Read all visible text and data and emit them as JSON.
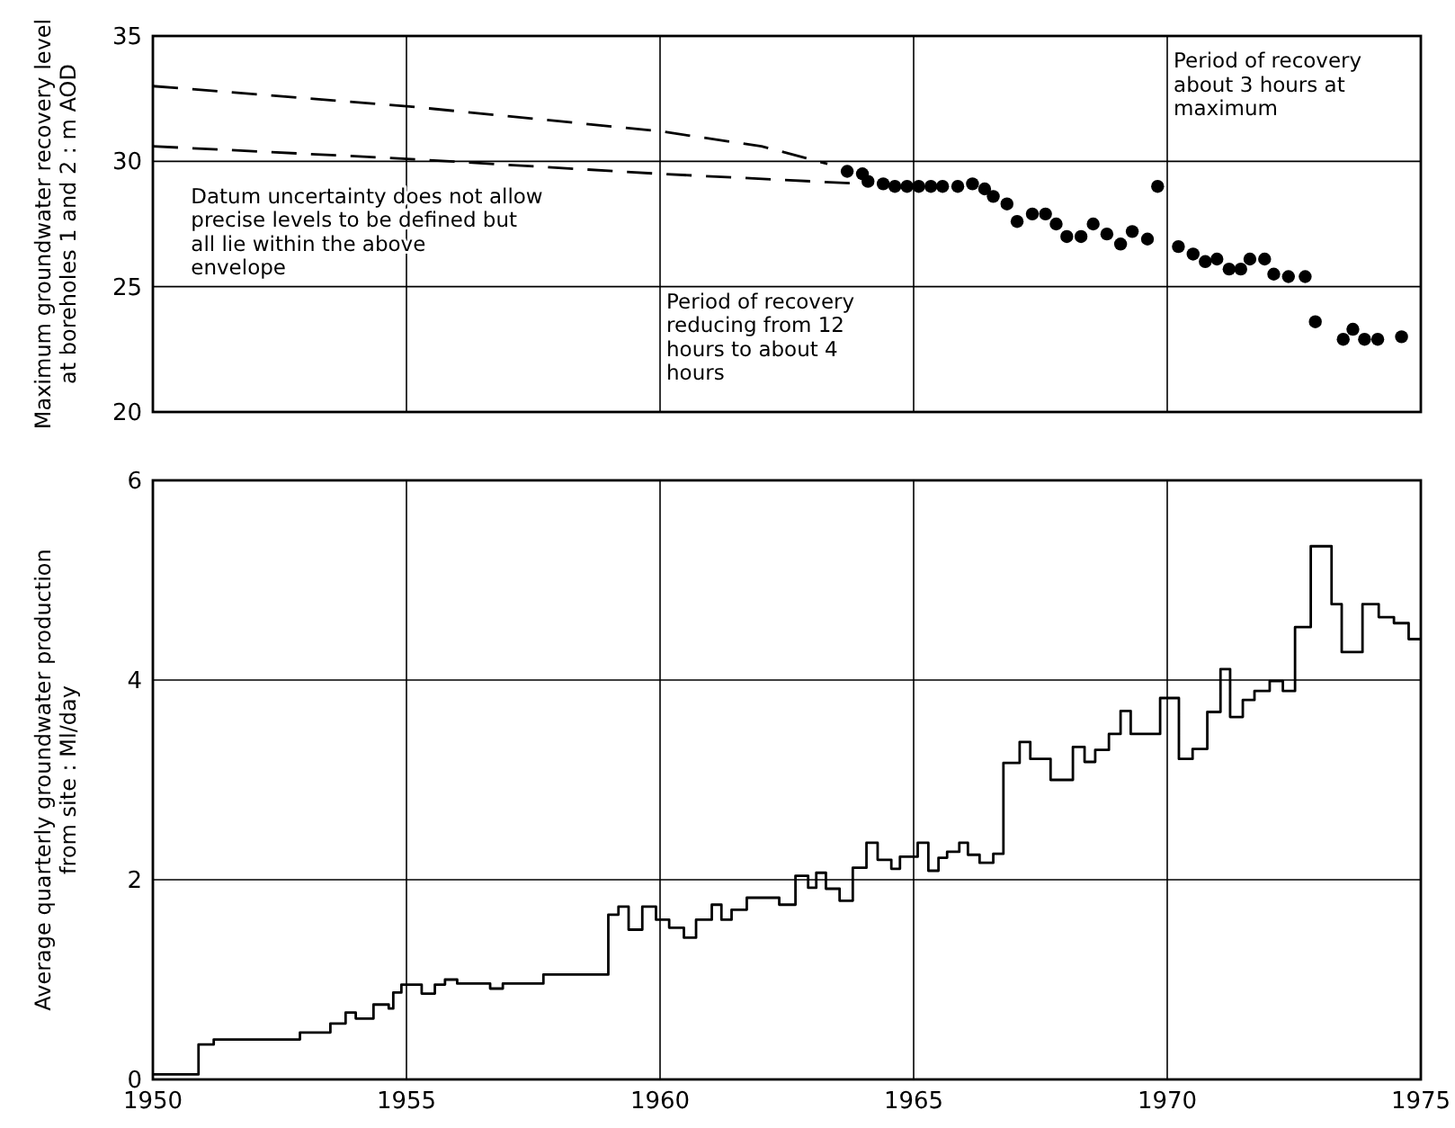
{
  "chart_data": [
    {
      "type": "scatter",
      "ylabel": "Maximum groundwater recovery level at boreholes 1 and 2 : m AOD",
      "xlim": [
        1950,
        1975
      ],
      "xticks": [
        1950,
        1955,
        1960,
        1965,
        1970,
        1975
      ],
      "ylim": [
        20,
        35
      ],
      "yticks": [
        20,
        25,
        30,
        35
      ],
      "tick_labels": "y",
      "grid": true,
      "series": [
        {
          "color": "#000000",
          "marker": "circle",
          "x": [
            1963.69,
            1963.99,
            1964.1,
            1964.4,
            1964.63,
            1964.87,
            1965.1,
            1965.34,
            1965.57,
            1965.87,
            1966.16,
            1966.4,
            1966.57,
            1966.84,
            1967.04,
            1967.34,
            1967.6,
            1967.81,
            1968.02,
            1968.3,
            1968.54,
            1968.81,
            1969.08,
            1969.31,
            1969.61,
            1969.81,
            1970.22,
            1970.51,
            1970.75,
            1970.98,
            1971.22,
            1971.45,
            1971.63,
            1971.92,
            1972.1,
            1972.39,
            1972.72,
            1972.92,
            1973.47,
            1973.66,
            1973.89,
            1974.15,
            1974.62
          ],
          "values": [
            29.6,
            29.5,
            29.2,
            29.1,
            29.0,
            29.0,
            29.0,
            29.0,
            29.0,
            29.0,
            29.1,
            28.9,
            28.6,
            28.3,
            27.6,
            27.9,
            27.9,
            27.5,
            27.0,
            27.0,
            27.5,
            27.1,
            26.7,
            27.2,
            26.9,
            29.0,
            26.6,
            26.3,
            26.0,
            26.1,
            25.7,
            25.7,
            26.1,
            26.1,
            25.5,
            25.4,
            25.4,
            23.6,
            22.9,
            23.3,
            22.9,
            22.9,
            23.0
          ]
        },
        {
          "type": "line",
          "color": "#000000",
          "line_style": "dashed",
          "x": [
            1950,
            1955,
            1960,
            1962,
            1963.3
          ],
          "values": [
            33.0,
            32.2,
            31.2,
            30.6,
            29.9
          ]
        },
        {
          "type": "line",
          "color": "#000000",
          "line_style": "dashed",
          "x": [
            1950,
            1955,
            1960,
            1964
          ],
          "values": [
            30.6,
            30.1,
            29.5,
            29.1
          ]
        }
      ],
      "annotations": [
        "Datum uncertainty does not allow precise levels to be defined but all lie within the above envelope",
        "Period of recovery reducing from 12 hours to about 4 hours",
        "Period of recovery about 3 hours at maximum"
      ]
    },
    {
      "type": "step",
      "ylabel": "Average quarterly groundwater production from site : Ml/day",
      "xlim": [
        1950,
        1975
      ],
      "xticks": [
        1950,
        1955,
        1960,
        1965,
        1970,
        1975
      ],
      "ylim": [
        0,
        6
      ],
      "yticks": [
        0,
        2,
        4,
        6
      ],
      "grid": true,
      "series": [
        {
          "color": "#000000",
          "x": [
            1950,
            1950.9,
            1951.2,
            1952.9,
            1953.5,
            1953.8,
            1954.0,
            1954.35,
            1954.65,
            1954.74,
            1954.9,
            1955.3,
            1955.56,
            1955.76,
            1956.0,
            1956.65,
            1956.9,
            1957.7,
            1958.98,
            1959.18,
            1959.38,
            1959.65,
            1959.92,
            1960.18,
            1960.47,
            1960.71,
            1961.02,
            1961.21,
            1961.41,
            1961.71,
            1962.35,
            1962.67,
            1962.92,
            1963.08,
            1963.27,
            1963.54,
            1963.8,
            1964.07,
            1964.29,
            1964.56,
            1964.73,
            1965.08,
            1965.29,
            1965.49,
            1965.66,
            1965.9,
            1966.07,
            1966.3,
            1966.57,
            1966.77,
            1967.09,
            1967.3,
            1967.7,
            1968.14,
            1968.37,
            1968.58,
            1968.85,
            1969.08,
            1969.28,
            1969.86,
            1970.23,
            1970.5,
            1970.79,
            1971.05,
            1971.24,
            1971.49,
            1971.72,
            1972.02,
            1972.28,
            1972.52,
            1972.83,
            1973.24,
            1973.44,
            1973.85,
            1974.17,
            1974.47,
            1974.76,
            1975
          ],
          "values": [
            0.05,
            0.35,
            0.4,
            0.47,
            0.56,
            0.67,
            0.61,
            0.75,
            0.71,
            0.87,
            0.95,
            0.86,
            0.95,
            1.0,
            0.96,
            0.91,
            0.96,
            1.05,
            1.65,
            1.73,
            1.5,
            1.73,
            1.6,
            1.52,
            1.42,
            1.6,
            1.75,
            1.6,
            1.7,
            1.82,
            1.75,
            2.04,
            1.92,
            2.07,
            1.91,
            1.79,
            2.12,
            2.37,
            2.2,
            2.11,
            2.23,
            2.37,
            2.09,
            2.22,
            2.28,
            2.37,
            2.25,
            2.17,
            2.26,
            3.17,
            3.38,
            3.21,
            3.0,
            3.33,
            3.18,
            3.3,
            3.46,
            3.69,
            3.46,
            3.82,
            3.21,
            3.31,
            3.68,
            4.11,
            3.63,
            3.8,
            3.89,
            3.99,
            3.89,
            4.53,
            5.34,
            4.76,
            4.28,
            4.76,
            4.63,
            4.57,
            4.41,
            4.41
          ]
        }
      ]
    }
  ]
}
